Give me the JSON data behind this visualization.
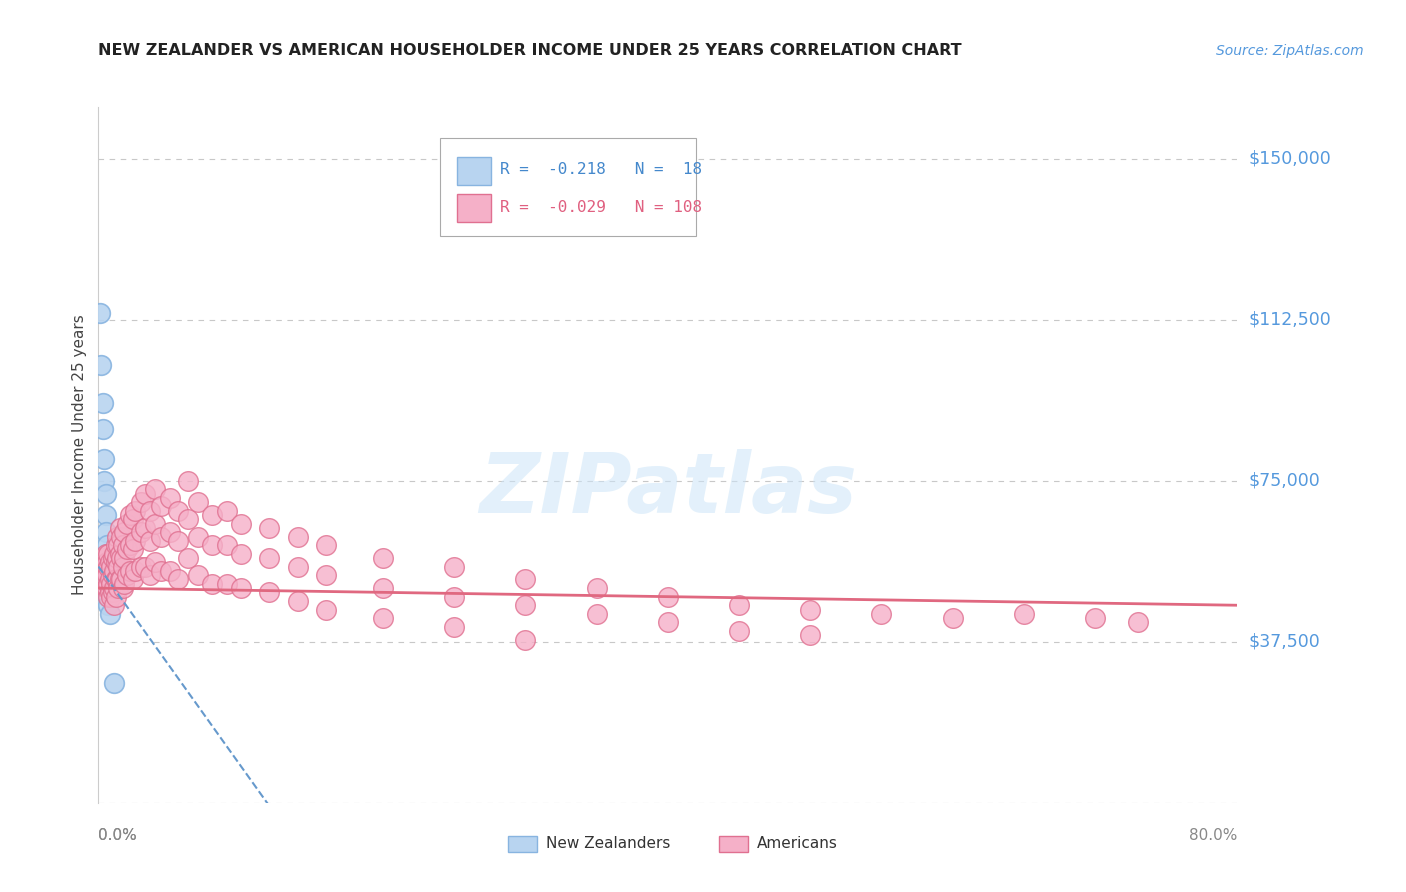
{
  "title": "NEW ZEALANDER VS AMERICAN HOUSEHOLDER INCOME UNDER 25 YEARS CORRELATION CHART",
  "source": "Source: ZipAtlas.com",
  "ylabel": "Householder Income Under 25 years",
  "xlim": [
    0.0,
    0.8
  ],
  "ylim": [
    0,
    162000
  ],
  "yticks": [
    0,
    37500,
    75000,
    112500,
    150000
  ],
  "ytick_labels": [
    "",
    "$37,500",
    "$75,000",
    "$112,500",
    "$150,000"
  ],
  "background_color": "#ffffff",
  "grid_color": "#c8c8c8",
  "nz_color": "#b8d4f0",
  "nz_edge_color": "#88b4e0",
  "us_color": "#f5b0c8",
  "us_edge_color": "#e07090",
  "nz_R": "-0.218",
  "nz_N": "18",
  "us_R": "-0.029",
  "us_N": "108",
  "nz_trendline_color": "#6699cc",
  "us_trendline_color": "#e06880",
  "watermark": "ZIPatlas",
  "nz_points": [
    [
      0.001,
      114000
    ],
    [
      0.002,
      102000
    ],
    [
      0.003,
      93000
    ],
    [
      0.003,
      87000
    ],
    [
      0.004,
      80000
    ],
    [
      0.004,
      75000
    ],
    [
      0.005,
      72000
    ],
    [
      0.005,
      67000
    ],
    [
      0.005,
      63000
    ],
    [
      0.006,
      60000
    ],
    [
      0.006,
      58000
    ],
    [
      0.006,
      55000
    ],
    [
      0.006,
      52000
    ],
    [
      0.007,
      50000
    ],
    [
      0.007,
      48000
    ],
    [
      0.007,
      46000
    ],
    [
      0.008,
      44000
    ],
    [
      0.011,
      28000
    ]
  ],
  "us_points": [
    [
      0.003,
      57000
    ],
    [
      0.004,
      55000
    ],
    [
      0.004,
      52000
    ],
    [
      0.005,
      58000
    ],
    [
      0.005,
      54000
    ],
    [
      0.005,
      50000
    ],
    [
      0.006,
      56000
    ],
    [
      0.006,
      53000
    ],
    [
      0.006,
      50000
    ],
    [
      0.007,
      58000
    ],
    [
      0.007,
      55000
    ],
    [
      0.007,
      51000
    ],
    [
      0.007,
      48000
    ],
    [
      0.008,
      56000
    ],
    [
      0.008,
      52000
    ],
    [
      0.008,
      49000
    ],
    [
      0.009,
      55000
    ],
    [
      0.009,
      51000
    ],
    [
      0.009,
      48000
    ],
    [
      0.01,
      57000
    ],
    [
      0.01,
      53000
    ],
    [
      0.01,
      49000
    ],
    [
      0.011,
      58000
    ],
    [
      0.011,
      54000
    ],
    [
      0.011,
      50000
    ],
    [
      0.011,
      46000
    ],
    [
      0.012,
      60000
    ],
    [
      0.012,
      56000
    ],
    [
      0.012,
      52000
    ],
    [
      0.012,
      48000
    ],
    [
      0.013,
      62000
    ],
    [
      0.013,
      57000
    ],
    [
      0.013,
      52000
    ],
    [
      0.014,
      60000
    ],
    [
      0.014,
      55000
    ],
    [
      0.014,
      50000
    ],
    [
      0.015,
      64000
    ],
    [
      0.015,
      58000
    ],
    [
      0.015,
      52000
    ],
    [
      0.016,
      62000
    ],
    [
      0.016,
      57000
    ],
    [
      0.016,
      52000
    ],
    [
      0.017,
      60000
    ],
    [
      0.017,
      55000
    ],
    [
      0.017,
      50000
    ],
    [
      0.018,
      63000
    ],
    [
      0.018,
      57000
    ],
    [
      0.018,
      51000
    ],
    [
      0.02,
      65000
    ],
    [
      0.02,
      59000
    ],
    [
      0.02,
      53000
    ],
    [
      0.022,
      67000
    ],
    [
      0.022,
      60000
    ],
    [
      0.022,
      54000
    ],
    [
      0.024,
      66000
    ],
    [
      0.024,
      59000
    ],
    [
      0.024,
      52000
    ],
    [
      0.026,
      68000
    ],
    [
      0.026,
      61000
    ],
    [
      0.026,
      54000
    ],
    [
      0.03,
      70000
    ],
    [
      0.03,
      63000
    ],
    [
      0.03,
      55000
    ],
    [
      0.033,
      72000
    ],
    [
      0.033,
      64000
    ],
    [
      0.033,
      55000
    ],
    [
      0.036,
      68000
    ],
    [
      0.036,
      61000
    ],
    [
      0.036,
      53000
    ],
    [
      0.04,
      73000
    ],
    [
      0.04,
      65000
    ],
    [
      0.04,
      56000
    ],
    [
      0.044,
      69000
    ],
    [
      0.044,
      62000
    ],
    [
      0.044,
      54000
    ],
    [
      0.05,
      71000
    ],
    [
      0.05,
      63000
    ],
    [
      0.05,
      54000
    ],
    [
      0.056,
      68000
    ],
    [
      0.056,
      61000
    ],
    [
      0.056,
      52000
    ],
    [
      0.063,
      75000
    ],
    [
      0.063,
      66000
    ],
    [
      0.063,
      57000
    ],
    [
      0.07,
      70000
    ],
    [
      0.07,
      62000
    ],
    [
      0.07,
      53000
    ],
    [
      0.08,
      67000
    ],
    [
      0.08,
      60000
    ],
    [
      0.08,
      51000
    ],
    [
      0.09,
      68000
    ],
    [
      0.09,
      60000
    ],
    [
      0.09,
      51000
    ],
    [
      0.1,
      65000
    ],
    [
      0.1,
      58000
    ],
    [
      0.1,
      50000
    ],
    [
      0.12,
      64000
    ],
    [
      0.12,
      57000
    ],
    [
      0.12,
      49000
    ],
    [
      0.14,
      62000
    ],
    [
      0.14,
      55000
    ],
    [
      0.14,
      47000
    ],
    [
      0.16,
      60000
    ],
    [
      0.16,
      53000
    ],
    [
      0.16,
      45000
    ],
    [
      0.2,
      57000
    ],
    [
      0.2,
      50000
    ],
    [
      0.2,
      43000
    ],
    [
      0.25,
      55000
    ],
    [
      0.25,
      48000
    ],
    [
      0.25,
      41000
    ],
    [
      0.3,
      52000
    ],
    [
      0.3,
      46000
    ],
    [
      0.3,
      38000
    ],
    [
      0.35,
      50000
    ],
    [
      0.35,
      44000
    ],
    [
      0.4,
      48000
    ],
    [
      0.4,
      42000
    ],
    [
      0.45,
      46000
    ],
    [
      0.45,
      40000
    ],
    [
      0.5,
      45000
    ],
    [
      0.5,
      39000
    ],
    [
      0.55,
      44000
    ],
    [
      0.6,
      43000
    ],
    [
      0.65,
      44000
    ],
    [
      0.7,
      43000
    ],
    [
      0.73,
      42000
    ]
  ]
}
